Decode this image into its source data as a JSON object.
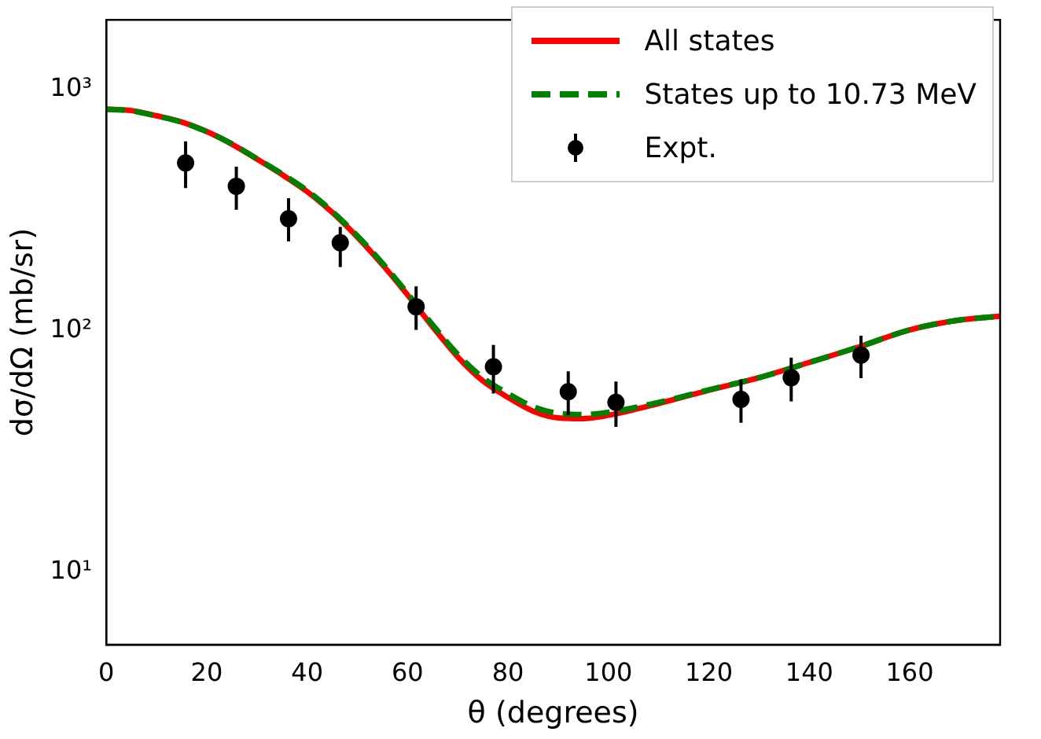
{
  "chart_data": {
    "type": "line",
    "xlabel": "θ (degrees)",
    "ylabel": "dσ/dΩ (mb/sr)",
    "log": "y",
    "grid": false,
    "legend": "top right",
    "xlim": [
      0,
      178
    ],
    "xticks": [
      0,
      20,
      40,
      60,
      80,
      100,
      120,
      140,
      160
    ],
    "ylim": [
      5,
      1950
    ],
    "yticks": [
      {
        "value": 10,
        "label": "10¹"
      },
      {
        "value": 100,
        "label": "10²"
      },
      {
        "value": 1000,
        "label": "10³"
      }
    ],
    "series": [
      {
        "name": "All states",
        "type": "line",
        "color": "#ff0000",
        "line_style": "solid",
        "marker": "none",
        "x": [
          0,
          5,
          10,
          15,
          20,
          25,
          30,
          35,
          40,
          45,
          50,
          55,
          60,
          65,
          70,
          75,
          80,
          85,
          90,
          95,
          100,
          110,
          120,
          130,
          140,
          150,
          160,
          170,
          178
        ],
        "values": [
          832,
          820,
          780,
          735,
          671,
          595,
          516,
          445,
          378,
          310,
          245,
          188,
          141,
          104,
          78,
          62,
          53,
          46.5,
          43.6,
          43.3,
          44.7,
          50,
          56.8,
          64,
          74,
          86,
          101,
          111,
          115
        ]
      },
      {
        "name": "States up to 10.73 MeV",
        "type": "line",
        "color": "#008000",
        "line_style": "dashed",
        "marker": "none",
        "x": [
          0,
          5,
          10,
          15,
          20,
          25,
          30,
          35,
          40,
          45,
          50,
          55,
          60,
          65,
          70,
          75,
          80,
          85,
          90,
          95,
          100,
          110,
          120,
          130,
          140,
          150,
          160,
          170,
          178
        ],
        "values": [
          830,
          818,
          778,
          734,
          670,
          597,
          518,
          448,
          382,
          313,
          248,
          191,
          143,
          106,
          80,
          64,
          55,
          48.5,
          45.5,
          45,
          46,
          50.5,
          57,
          64,
          74,
          86,
          101,
          111,
          115
        ]
      },
      {
        "name": "Expt.",
        "type": "scatter",
        "color": "#000000",
        "marker": "circle",
        "x": [
          15.8,
          25.9,
          36.3,
          46.6,
          61.7,
          77.1,
          92,
          101.5,
          126.4,
          136.4,
          150.3
        ],
        "values": [
          497,
          398,
          292,
          232,
          126,
          71,
          56,
          50.6,
          52,
          64,
          79.4
        ],
        "errors": [
          [
            391,
            611
          ],
          [
            318,
            480
          ],
          [
            235,
            355
          ],
          [
            184,
            270
          ],
          [
            101,
            153
          ],
          [
            55,
            87.5
          ],
          [
            44.7,
            68
          ],
          [
            40,
            61.7
          ],
          [
            41.6,
            63
          ],
          [
            51,
            77.5
          ],
          [
            63.7,
            95.5
          ]
        ]
      }
    ]
  }
}
